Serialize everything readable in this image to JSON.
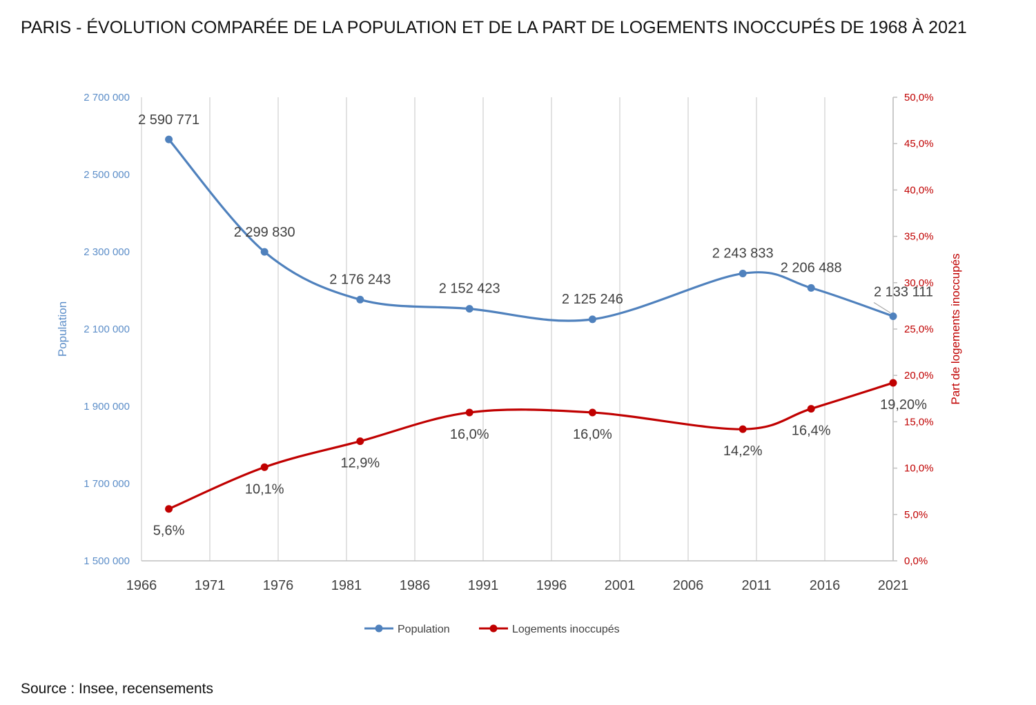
{
  "title": "PARIS - ÉVOLUTION COMPARÉE DE LA POPULATION ET DE LA PART DE LOGEMENTS INOCCUPÉS DE 1968 À 2021",
  "source": "Source : Insee, recensements",
  "colors": {
    "population": "#4f81bd",
    "logements": "#c00000",
    "left_axis_text": "#5b8dc8",
    "right_axis_text": "#c00000",
    "grid": "#d9d9d9",
    "label_text": "#404040"
  },
  "chart_data": {
    "type": "line",
    "title": "PARIS - ÉVOLUTION COMPARÉE DE LA POPULATION ET DE LA PART DE LOGEMENTS INOCCUPÉS DE 1968 À 2021",
    "x_ticks": [
      "1966",
      "1971",
      "1976",
      "1981",
      "1986",
      "1991",
      "1996",
      "2001",
      "2006",
      "2011",
      "2016",
      "2021"
    ],
    "xlim": [
      1966,
      2021
    ],
    "y_left": {
      "label": "Population",
      "ylim": [
        1500000,
        2700000
      ],
      "ticks": [
        "1 500 000",
        "1 700 000",
        "1 900 000",
        "2 100 000",
        "2 300 000",
        "2 500 000",
        "2 700 000"
      ]
    },
    "y_right": {
      "label": "Part de logements inoccupés",
      "ylim": [
        0,
        50
      ],
      "ticks": [
        "0,0%",
        "5,0%",
        "10,0%",
        "15,0%",
        "20,0%",
        "25,0%",
        "30,0%",
        "35,0%",
        "40,0%",
        "45,0%",
        "50,0%"
      ]
    },
    "grid": "vertical",
    "legend_position": "bottom",
    "series": [
      {
        "name": "Population",
        "axis": "left",
        "x": [
          1968,
          1975,
          1982,
          1990,
          1999,
          2010,
          2015,
          2021
        ],
        "values": [
          2590771,
          2299830,
          2176243,
          2152423,
          2125246,
          2243833,
          2206488,
          2133111
        ],
        "labels": [
          "2 590 771",
          "2 299 830",
          "2 176 243",
          "2 152 423",
          "2 125 246",
          "2 243 833",
          "2 206 488",
          "2 133 111"
        ]
      },
      {
        "name": "Logements inoccupés",
        "axis": "right",
        "x": [
          1968,
          1975,
          1982,
          1990,
          1999,
          2010,
          2015,
          2021
        ],
        "values": [
          5.6,
          10.1,
          12.9,
          16.0,
          16.0,
          14.2,
          16.4,
          19.2
        ],
        "labels": [
          "5,6%",
          "10,1%",
          "12,9%",
          "16,0%",
          "16,0%",
          "14,2%",
          "16,4%",
          "19,20%"
        ]
      }
    ]
  }
}
